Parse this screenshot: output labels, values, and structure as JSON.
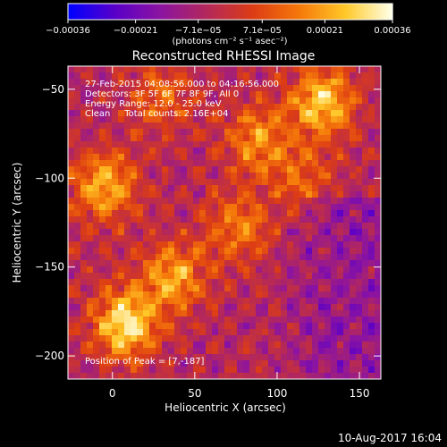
{
  "chart_data": {
    "type": "heatmap",
    "title": "Reconstructed RHESSI Image",
    "xlabel": "Heliocentric X (arcsec)",
    "ylabel": "Heliocentric Y (arcsec)",
    "xlim": [
      -27,
      163
    ],
    "ylim": [
      -213,
      -37
    ],
    "x_ticks": [
      0,
      50,
      100,
      150
    ],
    "x_tick_labels": [
      "0",
      "50",
      "100",
      "150"
    ],
    "y_ticks": [
      -50,
      -100,
      -150,
      -200
    ],
    "y_tick_labels": [
      "−50",
      "−100",
      "−150",
      "−200"
    ],
    "colorbar": {
      "min": -0.00036,
      "max": 0.00036,
      "ticks": [
        -0.00036,
        -0.00021,
        -7.1e-05,
        7.1e-05,
        0.00021,
        0.00036
      ],
      "tick_labels": [
        "−0.00036",
        "−0.00021",
        "−7.1e−05",
        "7.1e−05",
        "0.00021",
        "0.00036"
      ],
      "unit_label": "(photons cm⁻² s⁻¹ asec⁻²)",
      "colors": [
        "#0000ff",
        "#5a00c8",
        "#8c14a0",
        "#b4285a",
        "#dc3c14",
        "#f5780a",
        "#ffc828",
        "#ffffe6"
      ]
    },
    "annotations": [
      "27-Feb-2015 04:08:56.000 to 04:16:56.000",
      "Detectors: 3F 5F 6F 7F 8F 9F, All 0",
      "Energy Range: 12.0 - 25.0 keV",
      "Clean     Total counts: 2.16E+04"
    ],
    "peak_label": "Position of Peak = [7,-187]",
    "peak": [
      7,
      -187
    ],
    "grid": false,
    "sources": [
      {
        "x": 8,
        "y": -182,
        "intensity": 0.00036
      },
      {
        "x": 128,
        "y": -57,
        "intensity": 0.00032
      },
      {
        "x": -5,
        "y": -105,
        "intensity": 0.00028
      },
      {
        "x": 37,
        "y": -155,
        "intensity": 0.00026
      },
      {
        "x": 88,
        "y": -78,
        "intensity": 0.00022
      },
      {
        "x": 76,
        "y": -127,
        "intensity": 0.0002
      },
      {
        "x": 30,
        "y": -55,
        "intensity": 0.00016
      },
      {
        "x": 115,
        "y": -100,
        "intensity": 0.00015
      }
    ]
  },
  "footer": {
    "timestamp": "10-Aug-2017 16:04"
  }
}
